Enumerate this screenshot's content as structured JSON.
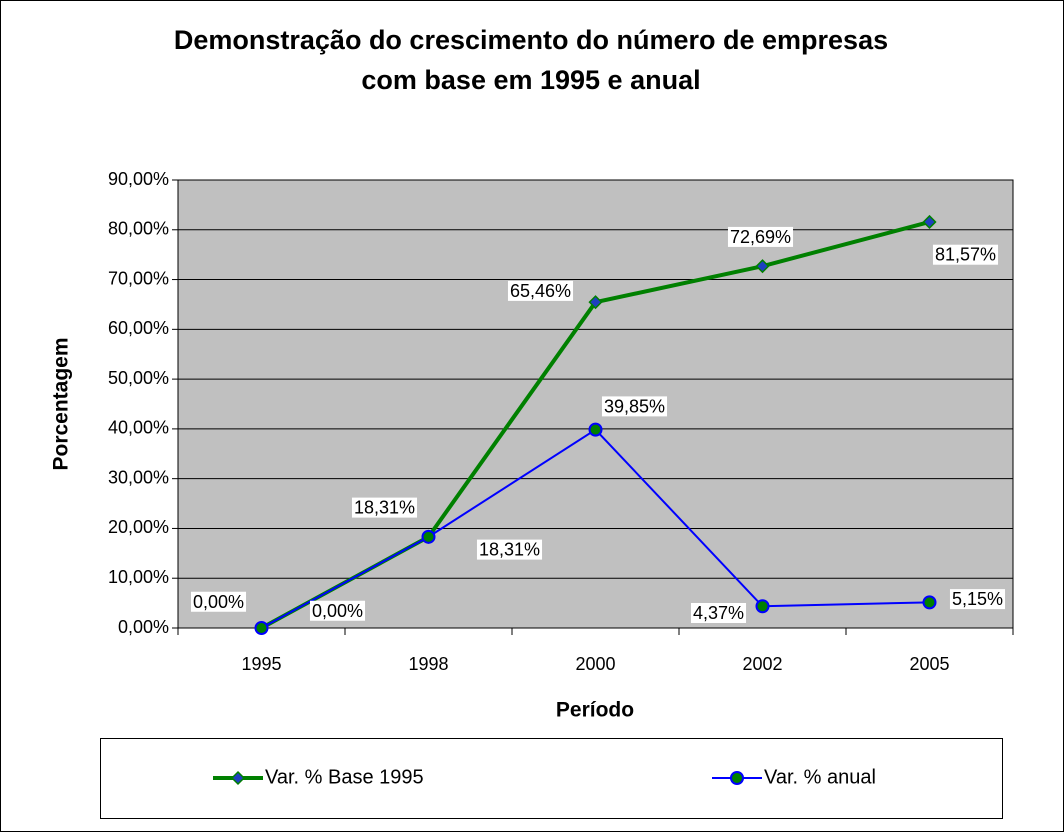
{
  "chart_data": {
    "type": "line",
    "title": "Demonstração do crescimento do número de empresas com base em 1995 e anual",
    "x_label": "Período",
    "y_label": "Porcentagem",
    "categories": [
      "1995",
      "1998",
      "2000",
      "2002",
      "2005"
    ],
    "series": [
      {
        "name": "Var. % Base 1995",
        "color": "#008000",
        "marker": "diamond",
        "marker_color": "#1f3fbf",
        "values": [
          0,
          18.31,
          65.46,
          72.69,
          81.57
        ],
        "value_labels": [
          "0,00%",
          "18,31%",
          "65,46%",
          "72,69%",
          "81,57%"
        ]
      },
      {
        "name": "Var. % anual",
        "color": "#0000ff",
        "marker": "circle",
        "marker_color": "#008000",
        "values": [
          0,
          18.31,
          39.85,
          4.37,
          5.15
        ],
        "value_labels": [
          "0,00%",
          "18,31%",
          "39,85%",
          "4,37%",
          "5,15%"
        ]
      }
    ],
    "ylim": [
      0,
      90
    ],
    "yticks": [
      {
        "value": 0,
        "label": "0,00%"
      },
      {
        "value": 10,
        "label": "10,00%"
      },
      {
        "value": 20,
        "label": "20,00%"
      },
      {
        "value": 30,
        "label": "30,00%"
      },
      {
        "value": 40,
        "label": "40,00%"
      },
      {
        "value": 50,
        "label": "50,00%"
      },
      {
        "value": 60,
        "label": "60,00%"
      },
      {
        "value": 70,
        "label": "70,00%"
      },
      {
        "value": 80,
        "label": "80,00%"
      },
      {
        "value": 90,
        "label": "90,00%"
      }
    ],
    "grid": true,
    "plot_background": "#c0c0c0",
    "legend": "bottom"
  }
}
